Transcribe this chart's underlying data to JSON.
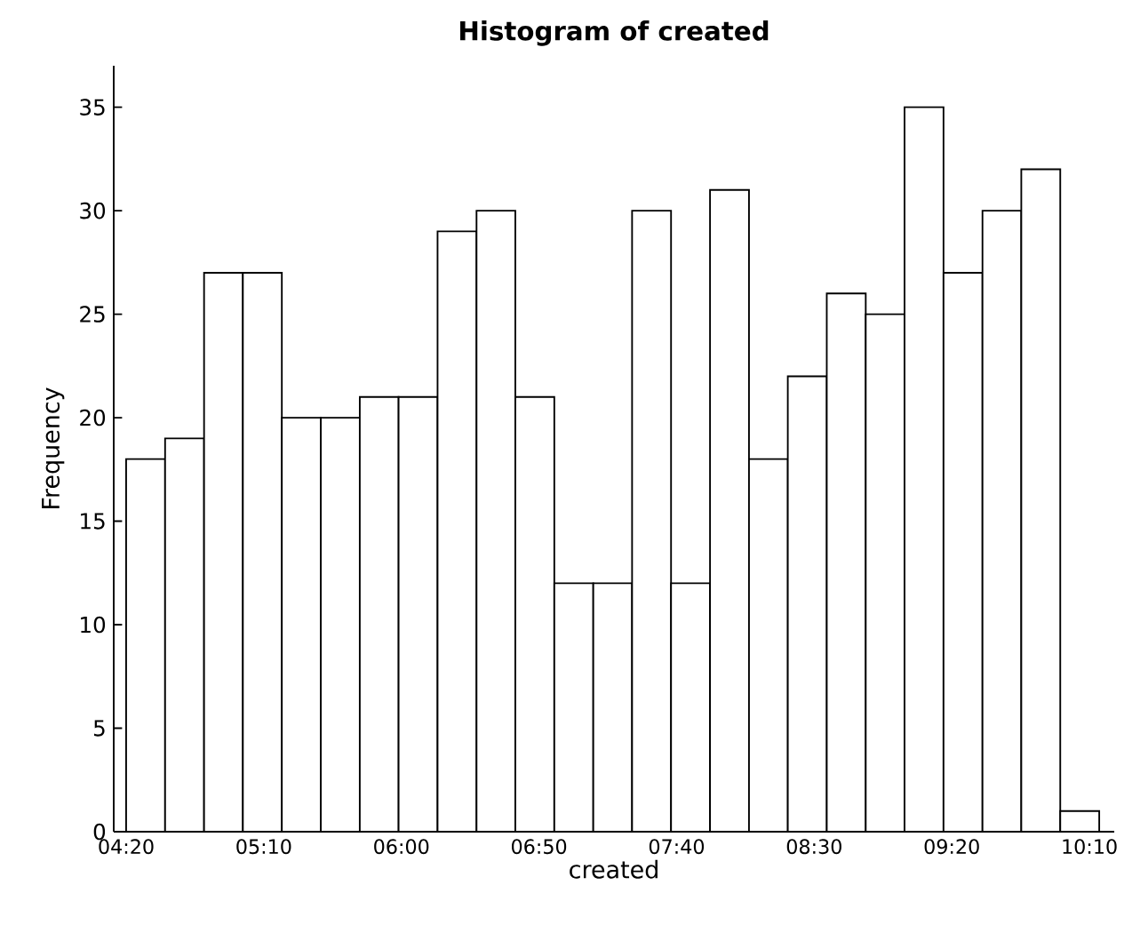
{
  "chart_data": {
    "type": "histogram",
    "title": "Histogram of created",
    "xlabel": "created",
    "ylabel": "Frequency",
    "bins": [
      4.333,
      4.569,
      4.805,
      5.04,
      5.276,
      5.512,
      5.748,
      5.983,
      6.219,
      6.455,
      6.69,
      6.926,
      7.162,
      7.397,
      7.633,
      7.869,
      8.105,
      8.34,
      8.576,
      8.812,
      9.047,
      9.283,
      9.519,
      9.754,
      9.99,
      10.226
    ],
    "values": [
      18,
      19,
      27,
      27,
      20,
      20,
      21,
      21,
      29,
      30,
      21,
      12,
      12,
      30,
      12,
      31,
      18,
      22,
      26,
      25,
      35,
      27,
      30,
      32,
      1
    ],
    "color": "#ffffff",
    "xlim": [
      4.258,
      10.317
    ],
    "ylim": [
      0,
      37
    ],
    "xticks": [
      {
        "value": 4.3333,
        "label": "04:20"
      },
      {
        "value": 5.1667,
        "label": "05:10"
      },
      {
        "value": 6.0,
        "label": "06:00"
      },
      {
        "value": 6.8333,
        "label": "06:50"
      },
      {
        "value": 7.6667,
        "label": "07:40"
      },
      {
        "value": 8.5,
        "label": "08:30"
      },
      {
        "value": 9.3333,
        "label": "09:20"
      },
      {
        "value": 10.1667,
        "label": "10:10"
      }
    ],
    "yticks": [
      0,
      5,
      10,
      15,
      20,
      25,
      30,
      35
    ],
    "grid": false
  }
}
